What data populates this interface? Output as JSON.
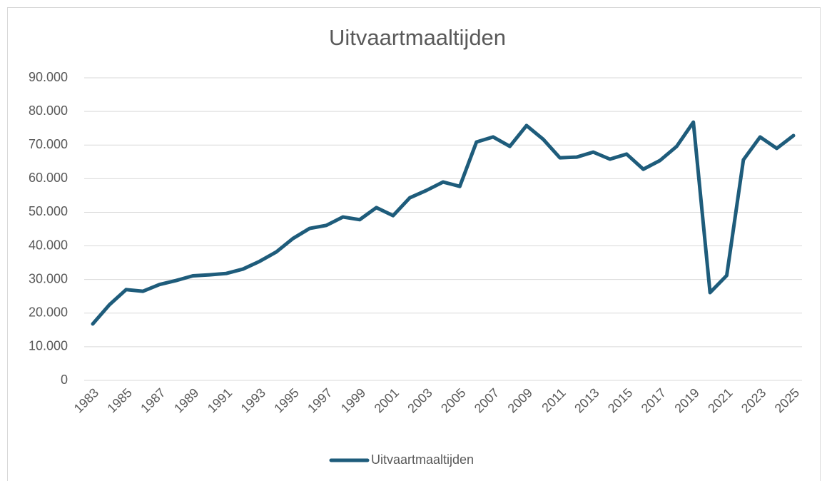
{
  "chart_data": {
    "type": "line",
    "title": "Uitvaartmaaltijden",
    "categories": [
      "1983",
      null,
      "1985",
      null,
      "1987",
      null,
      "1989",
      null,
      "1991",
      null,
      "1993",
      null,
      "1995",
      null,
      "1997",
      null,
      "1999",
      null,
      "2001",
      null,
      "2003",
      null,
      "2005",
      null,
      "2007",
      null,
      "2009",
      null,
      "2011",
      null,
      "2013",
      null,
      "2015",
      null,
      "2017",
      null,
      "2019",
      null,
      "2021",
      null,
      "2023",
      null,
      "2025"
    ],
    "series": [
      {
        "name": "Uitvaartmaaltijden",
        "color": "#1e5c7b",
        "values": [
          16800,
          22500,
          27000,
          26500,
          28500,
          29700,
          31100,
          31400,
          31800,
          33100,
          35400,
          38200,
          42200,
          45200,
          46100,
          48600,
          47800,
          51400,
          49000,
          54300,
          56500,
          59000,
          57700,
          70900,
          72400,
          69600,
          75800,
          71700,
          66200,
          66400,
          67900,
          65800,
          67300,
          62800,
          65400,
          69600,
          76800,
          26100,
          31200,
          65600,
          72400,
          69000,
          72800
        ]
      }
    ],
    "ylim": [
      0,
      90000
    ],
    "yticks": [
      0,
      {
        "value": 10000,
        "label": "10.000"
      },
      {
        "value": 20000,
        "label": "20.000"
      },
      {
        "value": 30000,
        "label": "30.000"
      },
      {
        "value": 40000,
        "label": "40.000"
      },
      {
        "value": 50000,
        "label": "50.000"
      },
      {
        "value": 60000,
        "label": "60.000"
      },
      {
        "value": 70000,
        "label": "70.000"
      },
      {
        "value": 80000,
        "label": "80.000"
      },
      {
        "value": 90000,
        "label": "90.000"
      }
    ],
    "grid": true,
    "legend": "bottom"
  }
}
